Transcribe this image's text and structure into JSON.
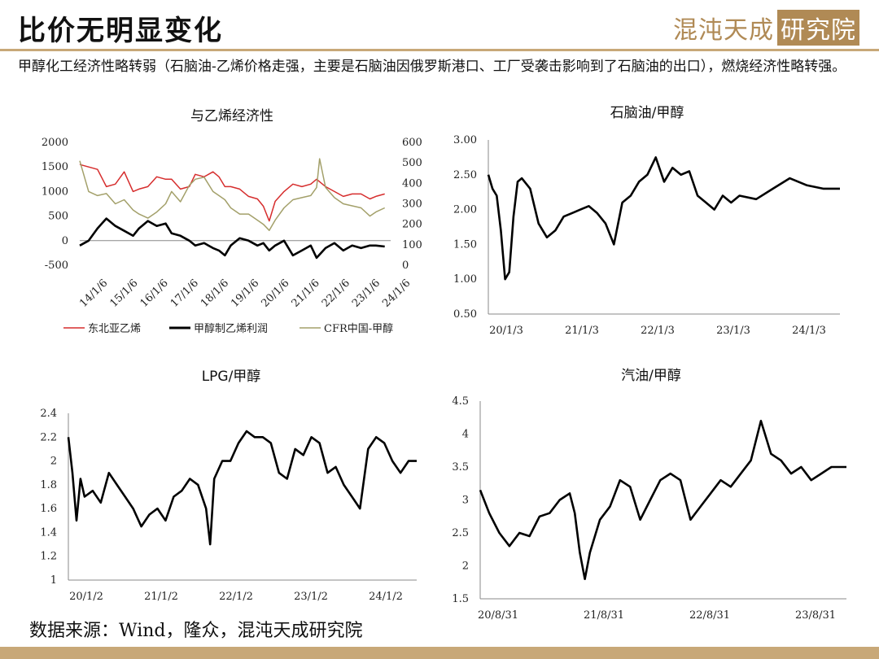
{
  "header": {
    "title": "比价无明显变化",
    "logo_text": "混沌天成",
    "logo_box": "研究院",
    "subtitle": "甲醇化工经济性略转弱（石脑油-乙烯价格走强，主要是石脑油因俄罗斯港口、工厂受袭击影响到了石脑油的出口），燃烧经济性略转强。"
  },
  "footer": {
    "source": "数据来源：Wind，隆众，混沌天成研究院"
  },
  "colors": {
    "ne_asia": "#d62d2d",
    "mto_profit": "#000000",
    "cfr": "#a3a06a",
    "brand": "#c8a878"
  },
  "chart_data": [
    {
      "id": "c1",
      "type": "line",
      "title": "与乙烯经济性",
      "x_ticks": [
        "14/1/6",
        "15/1/6",
        "16/1/6",
        "17/1/6",
        "18/1/6",
        "19/1/6",
        "20/1/6",
        "21/1/6",
        "22/1/6",
        "23/1/6",
        "24/1/6"
      ],
      "x_range": [
        2014.0,
        2024.5
      ],
      "y_left": {
        "range": [
          -500,
          2000
        ],
        "ticks": [
          2000,
          1500,
          1000,
          500,
          0,
          -500
        ]
      },
      "y_right": {
        "range": [
          0,
          600
        ],
        "ticks": [
          600,
          500,
          400,
          300,
          200,
          100,
          0
        ]
      },
      "legend": [
        "东北亚乙烯",
        "甲醇制乙烯利润",
        "CFR中国-甲醇"
      ],
      "series": [
        {
          "name": "东北亚乙烯",
          "axis": "left",
          "color": "#d62d2d",
          "x": [
            2014.0,
            2014.3,
            2014.6,
            2014.9,
            2015.2,
            2015.5,
            2015.8,
            2016.0,
            2016.3,
            2016.6,
            2016.9,
            2017.1,
            2017.4,
            2017.7,
            2017.9,
            2018.2,
            2018.5,
            2018.7,
            2018.9,
            2019.1,
            2019.4,
            2019.7,
            2020.0,
            2020.2,
            2020.4,
            2020.6,
            2020.9,
            2021.2,
            2021.5,
            2021.8,
            2022.0,
            2022.3,
            2022.6,
            2022.9,
            2023.2,
            2023.5,
            2023.8,
            2024.0,
            2024.3
          ],
          "y": [
            1550,
            1500,
            1450,
            1100,
            1150,
            1400,
            1000,
            1050,
            1100,
            1300,
            1250,
            1250,
            1050,
            1100,
            1350,
            1300,
            1400,
            1300,
            1100,
            1100,
            1050,
            900,
            850,
            700,
            400,
            800,
            1000,
            1150,
            1100,
            1150,
            1250,
            1100,
            1000,
            900,
            950,
            950,
            850,
            900,
            950
          ]
        },
        {
          "name": "甲醇制乙烯利润",
          "axis": "left",
          "color": "#000000",
          "x": [
            2014.0,
            2014.3,
            2014.6,
            2014.9,
            2015.2,
            2015.5,
            2015.8,
            2016.0,
            2016.3,
            2016.6,
            2016.9,
            2017.1,
            2017.4,
            2017.7,
            2017.9,
            2018.2,
            2018.5,
            2018.7,
            2018.9,
            2019.1,
            2019.4,
            2019.7,
            2020.0,
            2020.2,
            2020.4,
            2020.6,
            2020.9,
            2021.2,
            2021.5,
            2021.8,
            2022.0,
            2022.3,
            2022.6,
            2022.9,
            2023.2,
            2023.5,
            2023.8,
            2024.0,
            2024.3
          ],
          "y": [
            -100,
            0,
            250,
            450,
            300,
            200,
            100,
            250,
            400,
            300,
            350,
            150,
            100,
            0,
            -100,
            -50,
            -150,
            -200,
            -300,
            -100,
            50,
            0,
            -100,
            -50,
            -200,
            -100,
            0,
            -300,
            -200,
            -100,
            -350,
            -150,
            -50,
            -200,
            -100,
            -150,
            -100,
            -100,
            -120
          ]
        },
        {
          "name": "CFR中国-甲醇",
          "axis": "right",
          "color": "#a3a06a",
          "x": [
            2014.0,
            2014.3,
            2014.6,
            2014.9,
            2015.2,
            2015.5,
            2015.8,
            2016.0,
            2016.3,
            2016.6,
            2016.9,
            2017.1,
            2017.4,
            2017.7,
            2017.9,
            2018.2,
            2018.5,
            2018.7,
            2018.9,
            2019.1,
            2019.4,
            2019.7,
            2020.0,
            2020.2,
            2020.4,
            2020.6,
            2020.9,
            2021.2,
            2021.5,
            2021.8,
            2022.0,
            2022.1,
            2022.3,
            2022.6,
            2022.9,
            2023.2,
            2023.5,
            2023.8,
            2024.0,
            2024.3
          ],
          "y": [
            510,
            360,
            340,
            350,
            300,
            320,
            270,
            250,
            230,
            260,
            300,
            360,
            310,
            390,
            420,
            430,
            360,
            340,
            320,
            280,
            250,
            250,
            220,
            200,
            170,
            220,
            280,
            320,
            330,
            340,
            380,
            520,
            380,
            330,
            300,
            290,
            280,
            240,
            260,
            280
          ]
        }
      ]
    },
    {
      "id": "c2",
      "type": "line",
      "title": "石脑油/甲醇",
      "x_ticks": [
        "20/1/3",
        "21/1/3",
        "22/1/3",
        "23/1/3",
        "24/1/3"
      ],
      "x_range": [
        2020.0,
        2024.2
      ],
      "y_left": {
        "range": [
          0.5,
          3.0
        ],
        "ticks": [
          "3.00",
          "2.50",
          "2.00",
          "1.50",
          "1.00",
          "0.50"
        ]
      },
      "series": [
        {
          "name": "",
          "color": "#000000",
          "x": [
            2020.0,
            2020.05,
            2020.1,
            2020.15,
            2020.2,
            2020.25,
            2020.3,
            2020.35,
            2020.4,
            2020.5,
            2020.6,
            2020.7,
            2020.8,
            2020.9,
            2021.0,
            2021.1,
            2021.2,
            2021.3,
            2021.4,
            2021.5,
            2021.6,
            2021.7,
            2021.8,
            2021.9,
            2022.0,
            2022.1,
            2022.2,
            2022.3,
            2022.4,
            2022.5,
            2022.6,
            2022.7,
            2022.8,
            2022.9,
            2023.0,
            2023.2,
            2023.4,
            2023.6,
            2023.8,
            2024.0,
            2024.2
          ],
          "y": [
            2.5,
            2.3,
            2.2,
            1.7,
            1.0,
            1.1,
            1.9,
            2.4,
            2.45,
            2.3,
            1.8,
            1.6,
            1.7,
            1.9,
            1.95,
            2.0,
            2.05,
            1.95,
            1.8,
            1.5,
            2.1,
            2.2,
            2.4,
            2.5,
            2.75,
            2.4,
            2.6,
            2.5,
            2.55,
            2.2,
            2.1,
            2.0,
            2.2,
            2.1,
            2.2,
            2.15,
            2.3,
            2.45,
            2.35,
            2.3,
            2.3
          ]
        }
      ]
    },
    {
      "id": "c3",
      "type": "line",
      "title": "LPG/甲醇",
      "x_ticks": [
        "20/1/2",
        "21/1/2",
        "22/1/2",
        "23/1/2",
        "24/1/2"
      ],
      "x_range": [
        2020.0,
        2024.3
      ],
      "y_left": {
        "range": [
          1,
          2.4
        ],
        "ticks": [
          "2.4",
          "2.2",
          "2",
          "1.8",
          "1.6",
          "1.4",
          "1.2",
          "1"
        ]
      },
      "series": [
        {
          "name": "",
          "color": "#000000",
          "x": [
            2020.0,
            2020.05,
            2020.1,
            2020.15,
            2020.2,
            2020.3,
            2020.4,
            2020.5,
            2020.6,
            2020.7,
            2020.8,
            2020.9,
            2021.0,
            2021.1,
            2021.2,
            2021.3,
            2021.4,
            2021.5,
            2021.6,
            2021.7,
            2021.75,
            2021.8,
            2021.9,
            2022.0,
            2022.1,
            2022.2,
            2022.3,
            2022.4,
            2022.5,
            2022.6,
            2022.7,
            2022.8,
            2022.9,
            2023.0,
            2023.1,
            2023.2,
            2023.3,
            2023.4,
            2023.5,
            2023.6,
            2023.7,
            2023.8,
            2023.9,
            2024.0,
            2024.1,
            2024.2,
            2024.3
          ],
          "y": [
            2.2,
            1.9,
            1.5,
            1.85,
            1.7,
            1.75,
            1.65,
            1.9,
            1.8,
            1.7,
            1.6,
            1.45,
            1.55,
            1.6,
            1.5,
            1.7,
            1.75,
            1.85,
            1.8,
            1.6,
            1.3,
            1.85,
            2.0,
            2.0,
            2.15,
            2.25,
            2.2,
            2.2,
            2.15,
            1.9,
            1.85,
            2.1,
            2.05,
            2.2,
            2.15,
            1.9,
            1.95,
            1.8,
            1.7,
            1.6,
            2.1,
            2.2,
            2.15,
            2.0,
            1.9,
            2.0,
            2.0
          ]
        }
      ]
    },
    {
      "id": "c4",
      "type": "line",
      "title": "汽油/甲醇",
      "x_ticks": [
        "20/8/31",
        "21/8/31",
        "22/8/31",
        "23/8/31"
      ],
      "x_range": [
        2020.66,
        2024.3
      ],
      "y_left": {
        "range": [
          1.5,
          4.5
        ],
        "ticks": [
          "4.5",
          "4",
          "3.5",
          "3",
          "2.5",
          "2",
          "1.5"
        ]
      },
      "series": [
        {
          "name": "",
          "color": "#000000",
          "x": [
            2020.66,
            2020.75,
            2020.85,
            2020.95,
            2021.05,
            2021.15,
            2021.25,
            2021.35,
            2021.45,
            2021.55,
            2021.6,
            2021.65,
            2021.7,
            2021.75,
            2021.85,
            2021.95,
            2022.05,
            2022.15,
            2022.25,
            2022.35,
            2022.45,
            2022.55,
            2022.65,
            2022.75,
            2022.85,
            2022.95,
            2023.05,
            2023.15,
            2023.25,
            2023.35,
            2023.45,
            2023.55,
            2023.65,
            2023.75,
            2023.85,
            2023.95,
            2024.05,
            2024.15,
            2024.3
          ],
          "y": [
            3.15,
            2.8,
            2.5,
            2.3,
            2.5,
            2.45,
            2.75,
            2.8,
            3.0,
            3.1,
            2.8,
            2.2,
            1.8,
            2.2,
            2.7,
            2.9,
            3.3,
            3.2,
            2.7,
            3.0,
            3.3,
            3.4,
            3.3,
            2.7,
            2.9,
            3.1,
            3.3,
            3.2,
            3.4,
            3.6,
            4.2,
            3.7,
            3.6,
            3.4,
            3.5,
            3.3,
            3.4,
            3.5,
            3.5
          ]
        }
      ]
    }
  ]
}
